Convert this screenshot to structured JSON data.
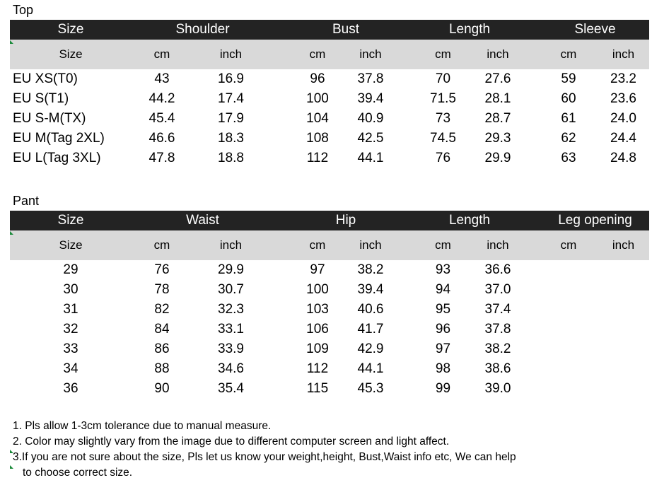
{
  "top": {
    "label": "Top",
    "header": [
      "Size",
      "Shoulder",
      "Bust",
      "Length",
      "Sleeve"
    ],
    "subheader": [
      "Size",
      "cm",
      "inch",
      "cm",
      "inch",
      "cm",
      "inch",
      "cm",
      "inch"
    ],
    "rows": [
      [
        "EU  XS(T0)",
        "43",
        "16.9",
        "96",
        "37.8",
        "70",
        "27.6",
        "59",
        "23.2"
      ],
      [
        "EU S(T1)",
        "44.2",
        "17.4",
        "100",
        "39.4",
        "71.5",
        "28.1",
        "60",
        "23.6"
      ],
      [
        "EU S-M(TX)",
        "45.4",
        "17.9",
        "104",
        "40.9",
        "73",
        "28.7",
        "61",
        "24.0"
      ],
      [
        "EU M(Tag 2XL)",
        "46.6",
        "18.3",
        "108",
        "42.5",
        "74.5",
        "29.3",
        "62",
        "24.4"
      ],
      [
        "EU L(Tag 3XL)",
        "47.8",
        "18.8",
        "112",
        "44.1",
        "76",
        "29.9",
        "63",
        "24.8"
      ]
    ]
  },
  "pant": {
    "label": "Pant",
    "header": [
      "Size",
      "Waist",
      "Hip",
      "Length",
      "Leg opening"
    ],
    "subheader": [
      "Size",
      "cm",
      "inch",
      "cm",
      "inch",
      "cm",
      "inch",
      "cm",
      "inch"
    ],
    "rows": [
      [
        "29",
        "76",
        "29.9",
        "97",
        "38.2",
        "93",
        "36.6",
        "",
        ""
      ],
      [
        "30",
        "78",
        "30.7",
        "100",
        "39.4",
        "94",
        "37.0",
        "",
        ""
      ],
      [
        "31",
        "82",
        "32.3",
        "103",
        "40.6",
        "95",
        "37.4",
        "",
        ""
      ],
      [
        "32",
        "84",
        "33.1",
        "106",
        "41.7",
        "96",
        "37.8",
        "",
        ""
      ],
      [
        "33",
        "86",
        "33.9",
        "109",
        "42.9",
        "97",
        "38.2",
        "",
        ""
      ],
      [
        "34",
        "88",
        "34.6",
        "112",
        "44.1",
        "98",
        "38.6",
        "",
        ""
      ],
      [
        "36",
        "90",
        "35.4",
        "115",
        "45.3",
        "99",
        "39.0",
        "",
        ""
      ]
    ]
  },
  "notes": [
    "1. Pls allow 1-3cm tolerance due to manual measure.",
    "2. Color may slightly vary from the image due to different computer screen and light affect.",
    "3.If you are not sure about the size, Pls let us know your weight,height, Bust,Waist info etc, We can help",
    "to choose correct size."
  ],
  "colors": {
    "header_bg": "#232323",
    "subheader_bg": "#d9d9d9",
    "marker": "#1a8a3a"
  }
}
